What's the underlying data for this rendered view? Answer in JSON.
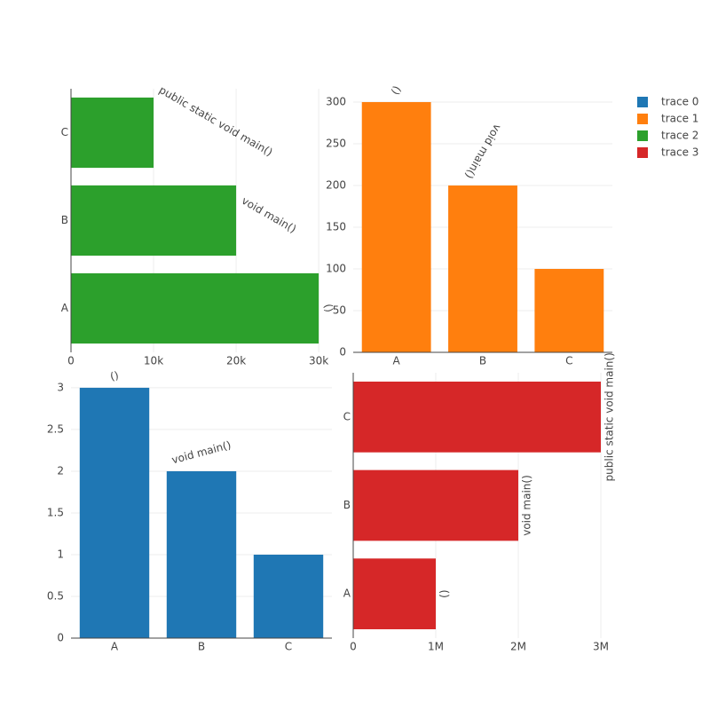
{
  "chart_data": [
    {
      "type": "bar",
      "orientation": "v",
      "name": "trace 0",
      "color": "#1f77b4",
      "categories": [
        "A",
        "B",
        "C"
      ],
      "values": [
        3,
        2,
        1
      ],
      "text": [
        "()",
        "void main()",
        null
      ],
      "ylim": [
        0,
        3.18
      ],
      "yticks": [
        0,
        0.5,
        1,
        1.5,
        2,
        2.5,
        3
      ],
      "grid": true
    },
    {
      "type": "bar",
      "orientation": "v",
      "name": "trace 1",
      "color": "#ff7f0e",
      "categories": [
        "A",
        "B",
        "C"
      ],
      "values": [
        300,
        200,
        100
      ],
      "text": [
        "()",
        "void main()",
        null
      ],
      "ylim": [
        0,
        316
      ],
      "yticks": [
        0,
        50,
        100,
        150,
        200,
        250,
        300
      ],
      "grid": true
    },
    {
      "type": "bar",
      "orientation": "h",
      "name": "trace 2",
      "color": "#2ca02c",
      "categories": [
        "A",
        "B",
        "C"
      ],
      "values": [
        30000,
        20000,
        10000
      ],
      "text": [
        "()",
        "void main()",
        "public static void main()"
      ],
      "xlim": [
        0,
        31600
      ],
      "xticks": [
        0,
        {
          "value": 10000,
          "label": "10k"
        },
        {
          "value": 20000,
          "label": "20k"
        },
        {
          "value": 30000,
          "label": "30k"
        }
      ],
      "grid": true
    },
    {
      "type": "bar",
      "orientation": "h",
      "name": "trace 3",
      "color": "#d62728",
      "categories": [
        "A",
        "B",
        "C"
      ],
      "values": [
        1000000,
        2000000,
        3000000
      ],
      "text": [
        "()",
        "void main()",
        "public static void main()"
      ],
      "xlim": [
        0,
        3140000
      ],
      "xticks": [
        0,
        {
          "value": 1000000,
          "label": "1M"
        },
        {
          "value": 2000000,
          "label": "2M"
        },
        {
          "value": 3000000,
          "label": "3M"
        }
      ],
      "grid": true
    }
  ]
}
